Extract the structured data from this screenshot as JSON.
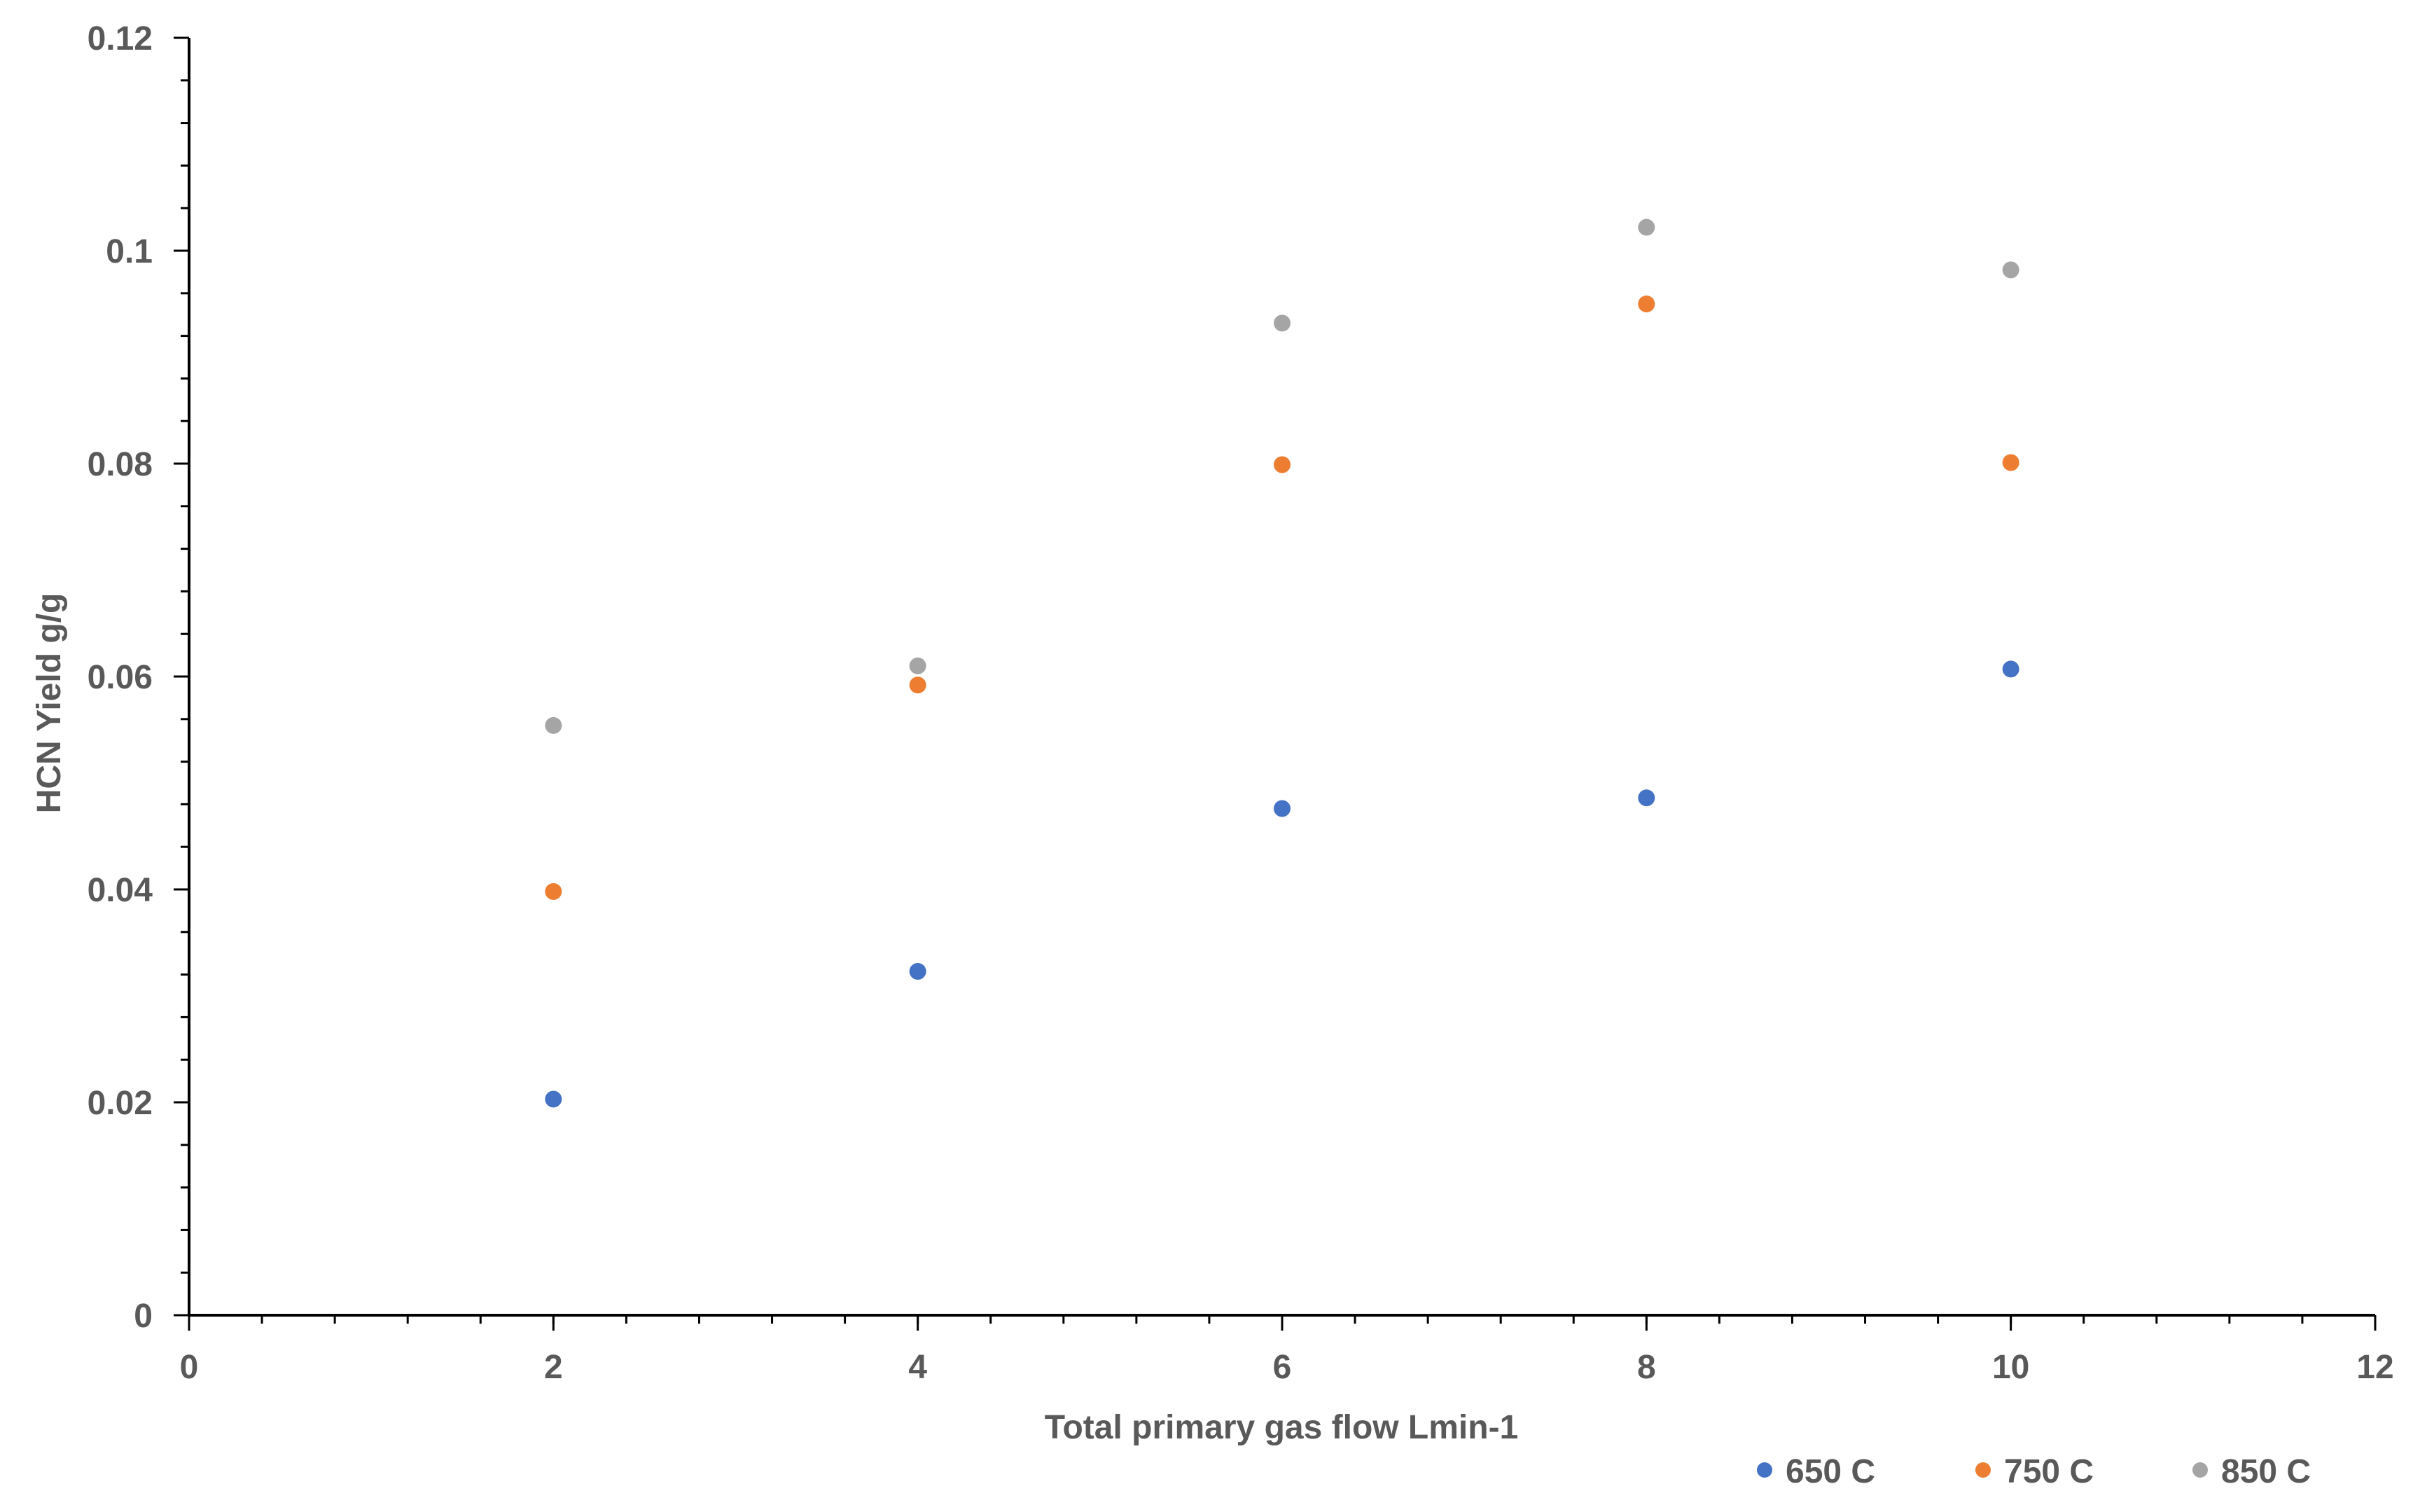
{
  "chart_data": {
    "type": "scatter",
    "title": "",
    "xlabel": "Total primary gas flow Lmin-1",
    "ylabel": "HCN Yield g/g",
    "xlim": [
      0,
      12
    ],
    "ylim": [
      0,
      0.12
    ],
    "x_ticks": [
      "0",
      "2",
      "4",
      "6",
      "8",
      "10",
      "12"
    ],
    "y_ticks": [
      "0",
      "0.02",
      "0.04",
      "0.06",
      "0.08",
      "0.1",
      "0.12"
    ],
    "x_minor_step": 0.4,
    "y_minor_step": 0.004,
    "grid": false,
    "legend_position": "bottom-right",
    "colors": {
      "axis": "#000000",
      "text": "#595959"
    },
    "series": [
      {
        "name": "650 C",
        "color": "#4472C4",
        "x": [
          2,
          4,
          6,
          8,
          10
        ],
        "y": [
          0.0203,
          0.0323,
          0.0476,
          0.0486,
          0.0607
        ]
      },
      {
        "name": "750 C",
        "color": "#ED7D31",
        "x": [
          2,
          4,
          6,
          8,
          10
        ],
        "y": [
          0.0398,
          0.0592,
          0.0799,
          0.095,
          0.0801
        ]
      },
      {
        "name": "850 C",
        "color": "#A5A5A5",
        "x": [
          2,
          4,
          6,
          8,
          10
        ],
        "y": [
          0.0554,
          0.061,
          0.0932,
          0.1022,
          0.0982
        ]
      }
    ]
  }
}
